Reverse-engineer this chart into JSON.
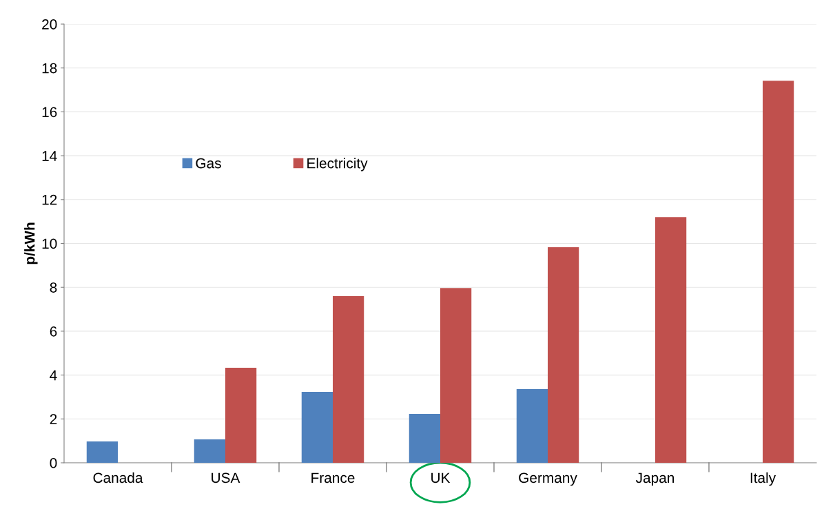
{
  "chart_data": {
    "type": "bar",
    "ylabel": "p/kWh",
    "categories": [
      "Canada",
      "USA",
      "France",
      "UK",
      "Germany",
      "Japan",
      "Italy"
    ],
    "series": [
      {
        "name": "Gas",
        "color": "#4f81bd",
        "values": [
          0.97,
          1.07,
          3.23,
          2.23,
          3.36,
          null,
          null
        ]
      },
      {
        "name": "Electricity",
        "color": "#c0504d",
        "values": [
          null,
          4.33,
          7.6,
          7.97,
          9.83,
          11.2,
          17.42
        ]
      }
    ],
    "ylim": [
      0,
      20
    ],
    "yticks": [
      0,
      2,
      4,
      6,
      8,
      10,
      12,
      14,
      16,
      18,
      20
    ],
    "grid": "y",
    "legend": "left"
  }
}
